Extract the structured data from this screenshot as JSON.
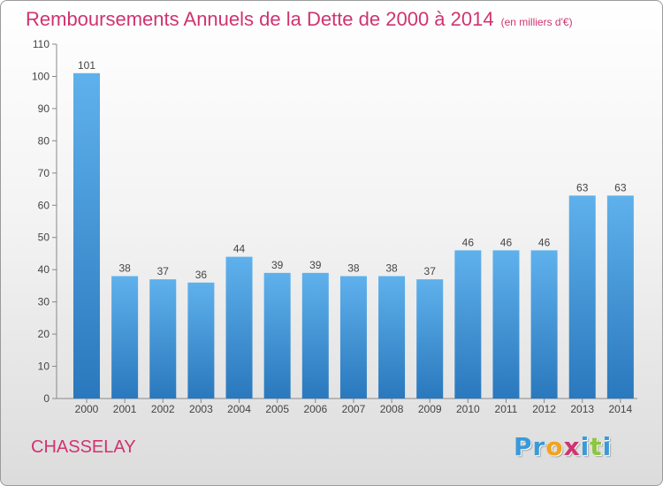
{
  "chart_data": {
    "type": "bar",
    "title": "Remboursements Annuels de la Dette de 2000 à 2014",
    "unit": "(en milliers d'€)",
    "categories": [
      "2000",
      "2001",
      "2002",
      "2003",
      "2004",
      "2005",
      "2006",
      "2007",
      "2008",
      "2009",
      "2010",
      "2011",
      "2012",
      "2013",
      "2014"
    ],
    "values": [
      101,
      38,
      37,
      36,
      44,
      39,
      39,
      38,
      38,
      37,
      46,
      46,
      46,
      63,
      63
    ],
    "ylim": [
      0,
      110
    ],
    "yticks": [
      0,
      10,
      20,
      30,
      40,
      50,
      60,
      70,
      80,
      90,
      100,
      110
    ],
    "grid": false,
    "bar_color": "#3a8fd4"
  },
  "footer": {
    "commune": "CHASSELAY"
  },
  "logo": {
    "letters": [
      {
        "char": "P",
        "color": "#3a9ad9"
      },
      {
        "char": "r",
        "color": "#3a9ad9"
      },
      {
        "char": "o",
        "color": "#f2a31b"
      },
      {
        "char": "x",
        "color": "#d0336f"
      },
      {
        "char": "i",
        "color": "#3a9ad9"
      },
      {
        "char": "t",
        "color": "#8cc63f"
      },
      {
        "char": "i",
        "color": "#3a9ad9"
      }
    ]
  }
}
